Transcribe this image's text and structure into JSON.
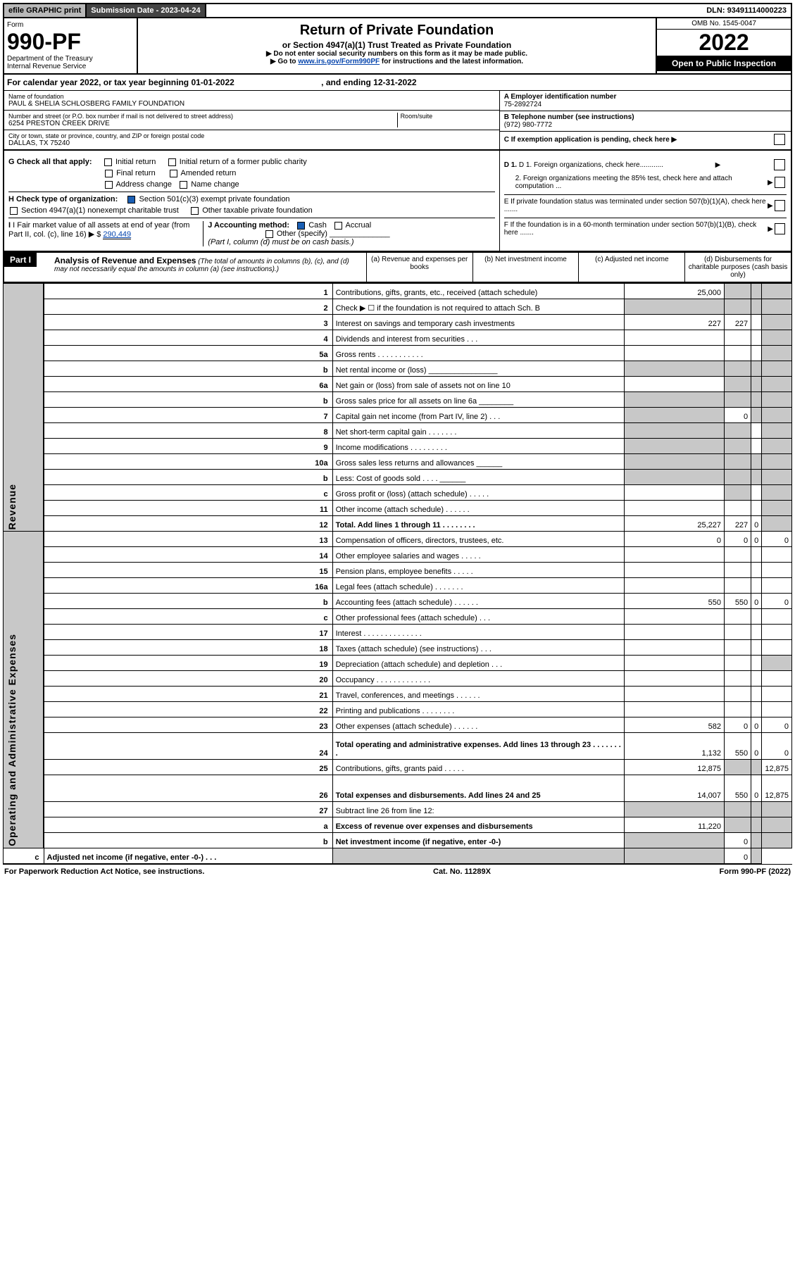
{
  "top": {
    "efile": "efile GRAPHIC print",
    "subdate_label": "Submission Date - ",
    "subdate": "2023-04-24",
    "dln_label": "DLN: ",
    "dln": "93491114000223"
  },
  "header": {
    "form_label": "Form",
    "form_no": "990-PF",
    "dept": "Department of the Treasury",
    "irs": "Internal Revenue Service",
    "title": "Return of Private Foundation",
    "subtitle": "or Section 4947(a)(1) Trust Treated as Private Foundation",
    "note1": "▶ Do not enter social security numbers on this form as it may be made public.",
    "note2_pre": "▶ Go to ",
    "note2_link": "www.irs.gov/Form990PF",
    "note2_post": " for instructions and the latest information.",
    "omb": "OMB No. 1545-0047",
    "year": "2022",
    "open": "Open to Public Inspection"
  },
  "calendar": {
    "text": "For calendar year 2022, or tax year beginning 01-01-2022",
    "ending": ", and ending 12-31-2022"
  },
  "info": {
    "name_lbl": "Name of foundation",
    "name": "PAUL & SHELIA SCHLOSBERG FAMILY FOUNDATION",
    "addr_lbl": "Number and street (or P.O. box number if mail is not delivered to street address)",
    "addr": "6254 PRESTON CREEK DRIVE",
    "room_lbl": "Room/suite",
    "city_lbl": "City or town, state or province, country, and ZIP or foreign postal code",
    "city": "DALLAS, TX  75240",
    "ein_lbl": "A Employer identification number",
    "ein": "75-2892724",
    "tel_lbl": "B Telephone number (see instructions)",
    "tel": "(972) 980-7772",
    "c_lbl": "C If exemption application is pending, check here ▶"
  },
  "checks": {
    "g": "G Check all that apply:",
    "g1": "Initial return",
    "g2": "Initial return of a former public charity",
    "g3": "Final return",
    "g4": "Amended return",
    "g5": "Address change",
    "g6": "Name change",
    "h": "H Check type of organization:",
    "h1": "Section 501(c)(3) exempt private foundation",
    "h2": "Section 4947(a)(1) nonexempt charitable trust",
    "h3": "Other taxable private foundation",
    "i": "I Fair market value of all assets at end of year (from Part II, col. (c), line 16) ▶ $",
    "i_val": "290,449",
    "j": "J Accounting method:",
    "j1": "Cash",
    "j2": "Accrual",
    "j3": "Other (specify)",
    "j_note": "(Part I, column (d) must be on cash basis.)",
    "d1": "D 1. Foreign organizations, check here............",
    "d2": "2. Foreign organizations meeting the 85% test, check here and attach computation ...",
    "e": "E  If private foundation status was terminated under section 507(b)(1)(A), check here .......",
    "f": "F  If the foundation is in a 60-month termination under section 507(b)(1)(B), check here ......."
  },
  "part1": {
    "label": "Part I",
    "title": "Analysis of Revenue and Expenses",
    "note": "(The total of amounts in columns (b), (c), and (d) may not necessarily equal the amounts in column (a) (see instructions).)",
    "col_a": "(a)  Revenue and expenses per books",
    "col_b": "(b)  Net investment income",
    "col_c": "(c)  Adjusted net income",
    "col_d": "(d)  Disbursements for charitable purposes (cash basis only)"
  },
  "side": {
    "rev": "Revenue",
    "exp": "Operating and Administrative Expenses"
  },
  "rows": [
    {
      "no": "1",
      "desc": "Contributions, gifts, grants, etc., received (attach schedule)",
      "a": "25,000",
      "b": "",
      "c": "",
      "d": "",
      "bgrey": true,
      "cgrey": true,
      "dgrey": true
    },
    {
      "no": "2",
      "desc": "Check ▶ ☐ if the foundation is not required to attach Sch. B",
      "a": "",
      "b": "",
      "c": "",
      "d": "",
      "agrey": true,
      "bgrey": true,
      "cgrey": true,
      "dgrey": true,
      "bold_not": true
    },
    {
      "no": "3",
      "desc": "Interest on savings and temporary cash investments",
      "a": "227",
      "b": "227",
      "c": "",
      "d": "",
      "dgrey": true
    },
    {
      "no": "4",
      "desc": "Dividends and interest from securities   .  .  .",
      "a": "",
      "b": "",
      "c": "",
      "d": "",
      "dgrey": true
    },
    {
      "no": "5a",
      "desc": "Gross rents   .  .  .  .  .  .  .  .  .  .  .",
      "a": "",
      "b": "",
      "c": "",
      "d": "",
      "dgrey": true
    },
    {
      "no": "b",
      "desc": "Net rental income or (loss)  ________________",
      "a": "",
      "b": "",
      "c": "",
      "d": "",
      "agrey": true,
      "bgrey": true,
      "cgrey": true,
      "dgrey": true
    },
    {
      "no": "6a",
      "desc": "Net gain or (loss) from sale of assets not on line 10",
      "a": "",
      "b": "",
      "c": "",
      "d": "",
      "bgrey": true,
      "cgrey": true,
      "dgrey": true
    },
    {
      "no": "b",
      "desc": "Gross sales price for all assets on line 6a ________",
      "a": "",
      "b": "",
      "c": "",
      "d": "",
      "agrey": true,
      "bgrey": true,
      "cgrey": true,
      "dgrey": true
    },
    {
      "no": "7",
      "desc": "Capital gain net income (from Part IV, line 2)  .  .  .",
      "a": "",
      "b": "0",
      "c": "",
      "d": "",
      "agrey": true,
      "cgrey": true,
      "dgrey": true
    },
    {
      "no": "8",
      "desc": "Net short-term capital gain  .  .  .  .  .  .  .",
      "a": "",
      "b": "",
      "c": "",
      "d": "",
      "agrey": true,
      "bgrey": true,
      "dgrey": true
    },
    {
      "no": "9",
      "desc": "Income modifications  .  .  .  .  .  .  .  .  .",
      "a": "",
      "b": "",
      "c": "",
      "d": "",
      "agrey": true,
      "bgrey": true,
      "dgrey": true
    },
    {
      "no": "10a",
      "desc": "Gross sales less returns and allowances  ______",
      "a": "",
      "b": "",
      "c": "",
      "d": "",
      "agrey": true,
      "bgrey": true,
      "cgrey": true,
      "dgrey": true
    },
    {
      "no": "b",
      "desc": "Less: Cost of goods sold   .  .  .  .  ______",
      "a": "",
      "b": "",
      "c": "",
      "d": "",
      "agrey": true,
      "bgrey": true,
      "cgrey": true,
      "dgrey": true
    },
    {
      "no": "c",
      "desc": "Gross profit or (loss) (attach schedule)  .  .  .  .  .",
      "a": "",
      "b": "",
      "c": "",
      "d": "",
      "bgrey": true,
      "dgrey": true
    },
    {
      "no": "11",
      "desc": "Other income (attach schedule)  .  .  .  .  .  .",
      "a": "",
      "b": "",
      "c": "",
      "d": "",
      "dgrey": true
    },
    {
      "no": "12",
      "desc": "Total. Add lines 1 through 11  .  .  .  .  .  .  .  .",
      "a": "25,227",
      "b": "227",
      "c": "0",
      "d": "",
      "bold": true,
      "dgrey": true
    },
    {
      "no": "13",
      "desc": "Compensation of officers, directors, trustees, etc.",
      "a": "0",
      "b": "0",
      "c": "0",
      "d": "0"
    },
    {
      "no": "14",
      "desc": "Other employee salaries and wages  .  .  .  .  .",
      "a": "",
      "b": "",
      "c": "",
      "d": ""
    },
    {
      "no": "15",
      "desc": "Pension plans, employee benefits  .  .  .  .  .",
      "a": "",
      "b": "",
      "c": "",
      "d": ""
    },
    {
      "no": "16a",
      "desc": "Legal fees (attach schedule)  .  .  .  .  .  .  .",
      "a": "",
      "b": "",
      "c": "",
      "d": ""
    },
    {
      "no": "b",
      "desc": "Accounting fees (attach schedule)  .  .  .  .  .  .",
      "a": "550",
      "b": "550",
      "c": "0",
      "d": "0"
    },
    {
      "no": "c",
      "desc": "Other professional fees (attach schedule)  .  .  .",
      "a": "",
      "b": "",
      "c": "",
      "d": ""
    },
    {
      "no": "17",
      "desc": "Interest  .  .  .  .  .  .  .  .  .  .  .  .  .  .",
      "a": "",
      "b": "",
      "c": "",
      "d": ""
    },
    {
      "no": "18",
      "desc": "Taxes (attach schedule) (see instructions)  .  .  .",
      "a": "",
      "b": "",
      "c": "",
      "d": ""
    },
    {
      "no": "19",
      "desc": "Depreciation (attach schedule) and depletion  .  .  .",
      "a": "",
      "b": "",
      "c": "",
      "d": "",
      "dgrey": true
    },
    {
      "no": "20",
      "desc": "Occupancy  .  .  .  .  .  .  .  .  .  .  .  .  .",
      "a": "",
      "b": "",
      "c": "",
      "d": ""
    },
    {
      "no": "21",
      "desc": "Travel, conferences, and meetings  .  .  .  .  .  .",
      "a": "",
      "b": "",
      "c": "",
      "d": ""
    },
    {
      "no": "22",
      "desc": "Printing and publications  .  .  .  .  .  .  .  .",
      "a": "",
      "b": "",
      "c": "",
      "d": ""
    },
    {
      "no": "23",
      "desc": "Other expenses (attach schedule)  .  .  .  .  .  .",
      "a": "582",
      "b": "0",
      "c": "0",
      "d": "0"
    },
    {
      "no": "24",
      "desc": "Total operating and administrative expenses. Add lines 13 through 23  .  .  .  .  .  .  .  .",
      "a": "1,132",
      "b": "550",
      "c": "0",
      "d": "0",
      "bold": true,
      "tall": true
    },
    {
      "no": "25",
      "desc": "Contributions, gifts, grants paid  .  .  .  .  .",
      "a": "12,875",
      "b": "",
      "c": "",
      "d": "12,875",
      "bgrey": true,
      "cgrey": true
    },
    {
      "no": "26",
      "desc": "Total expenses and disbursements. Add lines 24 and 25",
      "a": "14,007",
      "b": "550",
      "c": "0",
      "d": "12,875",
      "bold": true,
      "tall": true
    },
    {
      "no": "27",
      "desc": "Subtract line 26 from line 12:",
      "a": "",
      "b": "",
      "c": "",
      "d": "",
      "agrey": true,
      "bgrey": true,
      "cgrey": true,
      "dgrey": true
    },
    {
      "no": "a",
      "desc": "Excess of revenue over expenses and disbursements",
      "a": "11,220",
      "b": "",
      "c": "",
      "d": "",
      "bold": true,
      "bgrey": true,
      "cgrey": true,
      "dgrey": true
    },
    {
      "no": "b",
      "desc": "Net investment income (if negative, enter -0-)",
      "a": "",
      "b": "0",
      "c": "",
      "d": "",
      "bold": true,
      "agrey": true,
      "cgrey": true,
      "dgrey": true
    },
    {
      "no": "c",
      "desc": "Adjusted net income (if negative, enter -0-)  .  .  .",
      "a": "",
      "b": "",
      "c": "0",
      "d": "",
      "bold": true,
      "agrey": true,
      "bgrey": true,
      "dgrey": true
    }
  ],
  "footer": {
    "left": "For Paperwork Reduction Act Notice, see instructions.",
    "mid": "Cat. No. 11289X",
    "right": "Form 990-PF (2022)"
  }
}
